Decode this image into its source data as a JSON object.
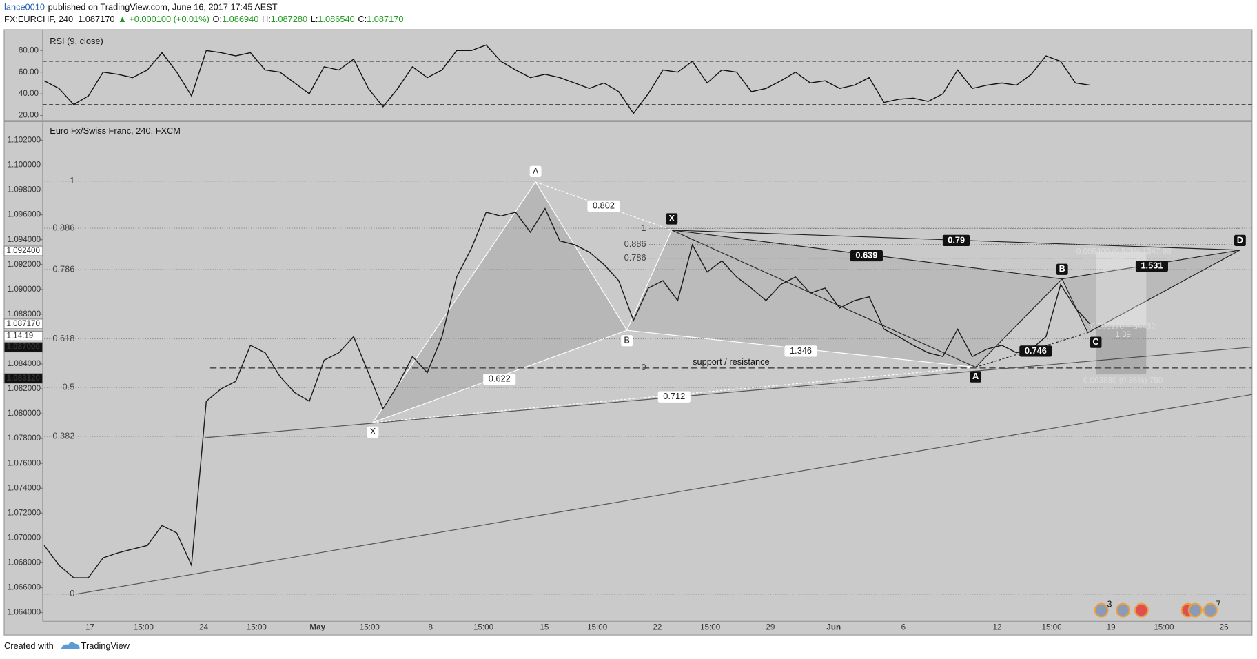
{
  "header": {
    "author": "lance0010",
    "published": "published on TradingView.com, June 16, 2017 17:45 AEST",
    "symbol": "FX:EURCHF, 240",
    "last": "1.087170",
    "change": "▲ +0.000100 (+0.01%)",
    "ohlc": [
      [
        "O:",
        "1.086940"
      ],
      [
        "H:",
        "1.087280"
      ],
      [
        "L:",
        "1.086540"
      ],
      [
        "C:",
        "1.087170"
      ]
    ]
  },
  "chart_data": [
    {
      "type": "line",
      "title": "RSI (9, close)",
      "color": "#111111",
      "values": [
        52,
        45,
        30,
        38,
        60,
        58,
        55,
        62,
        78,
        60,
        38,
        80,
        78,
        75,
        78,
        62,
        60,
        50,
        40,
        65,
        62,
        72,
        45,
        28,
        45,
        65,
        55,
        62,
        80,
        80,
        85,
        70,
        62,
        55,
        58,
        55,
        50,
        45,
        50,
        42,
        22,
        40,
        62,
        60,
        70,
        50,
        62,
        60,
        42,
        45,
        52,
        60,
        50,
        52,
        45,
        48,
        55,
        32,
        35,
        36,
        33,
        40,
        62,
        45,
        48,
        50,
        48,
        58,
        75,
        70,
        50,
        48
      ],
      "ylim": [
        15.6,
        98.5
      ],
      "yticks": [
        {
          "value": 20,
          "label": "20.00"
        },
        {
          "value": 40,
          "label": "40.00"
        },
        {
          "value": 60,
          "label": "60.00"
        },
        {
          "value": 80,
          "label": "80.00"
        }
      ],
      "bands": [
        30,
        70
      ]
    },
    {
      "type": "line",
      "title": "Euro Fx/Swiss Franc, 240, FXCM",
      "color": "#1a1a1a",
      "values": [
        1.0694,
        1.0678,
        1.0668,
        1.0668,
        1.0684,
        1.0688,
        1.0691,
        1.0694,
        1.071,
        1.0704,
        1.0678,
        1.081,
        1.082,
        1.0826,
        1.0855,
        1.0849,
        1.083,
        1.0817,
        1.081,
        1.0843,
        1.0849,
        1.0862,
        1.0833,
        1.0804,
        1.0823,
        1.0846,
        1.0833,
        1.0862,
        1.091,
        1.0933,
        1.0962,
        1.0959,
        1.0962,
        1.0946,
        1.0965,
        1.0939,
        1.0936,
        1.093,
        1.092,
        1.0907,
        1.0875,
        1.0901,
        1.0907,
        1.0891,
        1.0936,
        1.0914,
        1.0923,
        1.091,
        1.0901,
        1.0891,
        1.0904,
        1.091,
        1.0897,
        1.0901,
        1.0885,
        1.0891,
        1.0894,
        1.0868,
        1.0862,
        1.0855,
        1.0849,
        1.0846,
        1.0868,
        1.0846,
        1.0852,
        1.0855,
        1.0849,
        1.0852,
        1.0862,
        1.0904,
        1.0885,
        1.0872
      ],
      "ylim": [
        1.06329,
        1.10348
      ],
      "yticks": [
        {
          "value": 1.064,
          "label": "1.064000"
        },
        {
          "value": 1.066,
          "label": "1.066000"
        },
        {
          "value": 1.068,
          "label": "1.068000"
        },
        {
          "value": 1.07,
          "label": "1.070000"
        },
        {
          "value": 1.072,
          "label": "1.072000"
        },
        {
          "value": 1.074,
          "label": "1.074000"
        },
        {
          "value": 1.076,
          "label": "1.076000"
        },
        {
          "value": 1.078,
          "label": "1.078000"
        },
        {
          "value": 1.08,
          "label": "1.080000"
        },
        {
          "value": 1.082,
          "label": "1.082000"
        },
        {
          "value": 1.084,
          "label": "1.084000"
        },
        {
          "value": 1.086,
          "label": "1.086000"
        },
        {
          "value": 1.088,
          "label": "1.088000"
        },
        {
          "value": 1.09,
          "label": "1.090000"
        },
        {
          "value": 1.092,
          "label": "1.092000"
        },
        {
          "value": 1.094,
          "label": "1.094000"
        },
        {
          "value": 1.096,
          "label": "1.096000"
        },
        {
          "value": 1.098,
          "label": "1.098000"
        },
        {
          "value": 1.1,
          "label": "1.100000"
        },
        {
          "value": 1.102,
          "label": "1.102000"
        }
      ],
      "x_axis_labels": [
        "17",
        "15:00",
        "24",
        "15:00",
        "May",
        "15:00",
        "8",
        "15:00",
        "15",
        "15:00",
        "22",
        "15:00",
        "29",
        "Jun",
        "6",
        "12",
        "15:00",
        "19",
        "15:00",
        "26"
      ],
      "axis_badges": [
        "1.092400",
        "1.087170",
        "1:14:19",
        "1.087000",
        "1.083120"
      ],
      "fib": [
        {
          "ratio": 1,
          "price": 1.09871
        },
        {
          "ratio": 0.886,
          "price": 1.09492
        },
        {
          "ratio": 0.786,
          "price": 1.0916
        },
        {
          "ratio": 0.618,
          "price": 1.08602
        },
        {
          "ratio": 0.5,
          "price": 1.0821
        },
        {
          "ratio": 0.382,
          "price": 1.07817
        },
        {
          "ratio": 0,
          "price": 1.06548
        }
      ],
      "fib2": {
        "levels": [
          {
            "ratio": 1,
            "price": 1.0949
          },
          {
            "ratio": 0.886,
            "price": 1.09362
          },
          {
            "ratio": 0.786,
            "price": 1.0925
          },
          {
            "ratio": 0,
            "price": 1.08368
          }
        ],
        "label": "support / resistance"
      },
      "pattern1": {
        "points": [
          "X",
          "A",
          "B"
        ],
        "ratios": [
          0.622,
          0.802,
          1.346,
          0.712
        ]
      },
      "pattern2": {
        "points": [
          "X",
          "A",
          "B",
          "C",
          "D"
        ],
        "ratios": [
          0.639,
          0.79,
          0.746,
          1.531
        ]
      },
      "position_tool": [
        "0.005400 (0.50%) 1347.93",
        "0.000170 ~ 64432",
        "1.39",
        "0.003880 (0.36%) 750"
      ],
      "event_badges": [
        "3",
        "7"
      ]
    }
  ],
  "footer": {
    "created": "Created with",
    "brand": "TradingView"
  }
}
